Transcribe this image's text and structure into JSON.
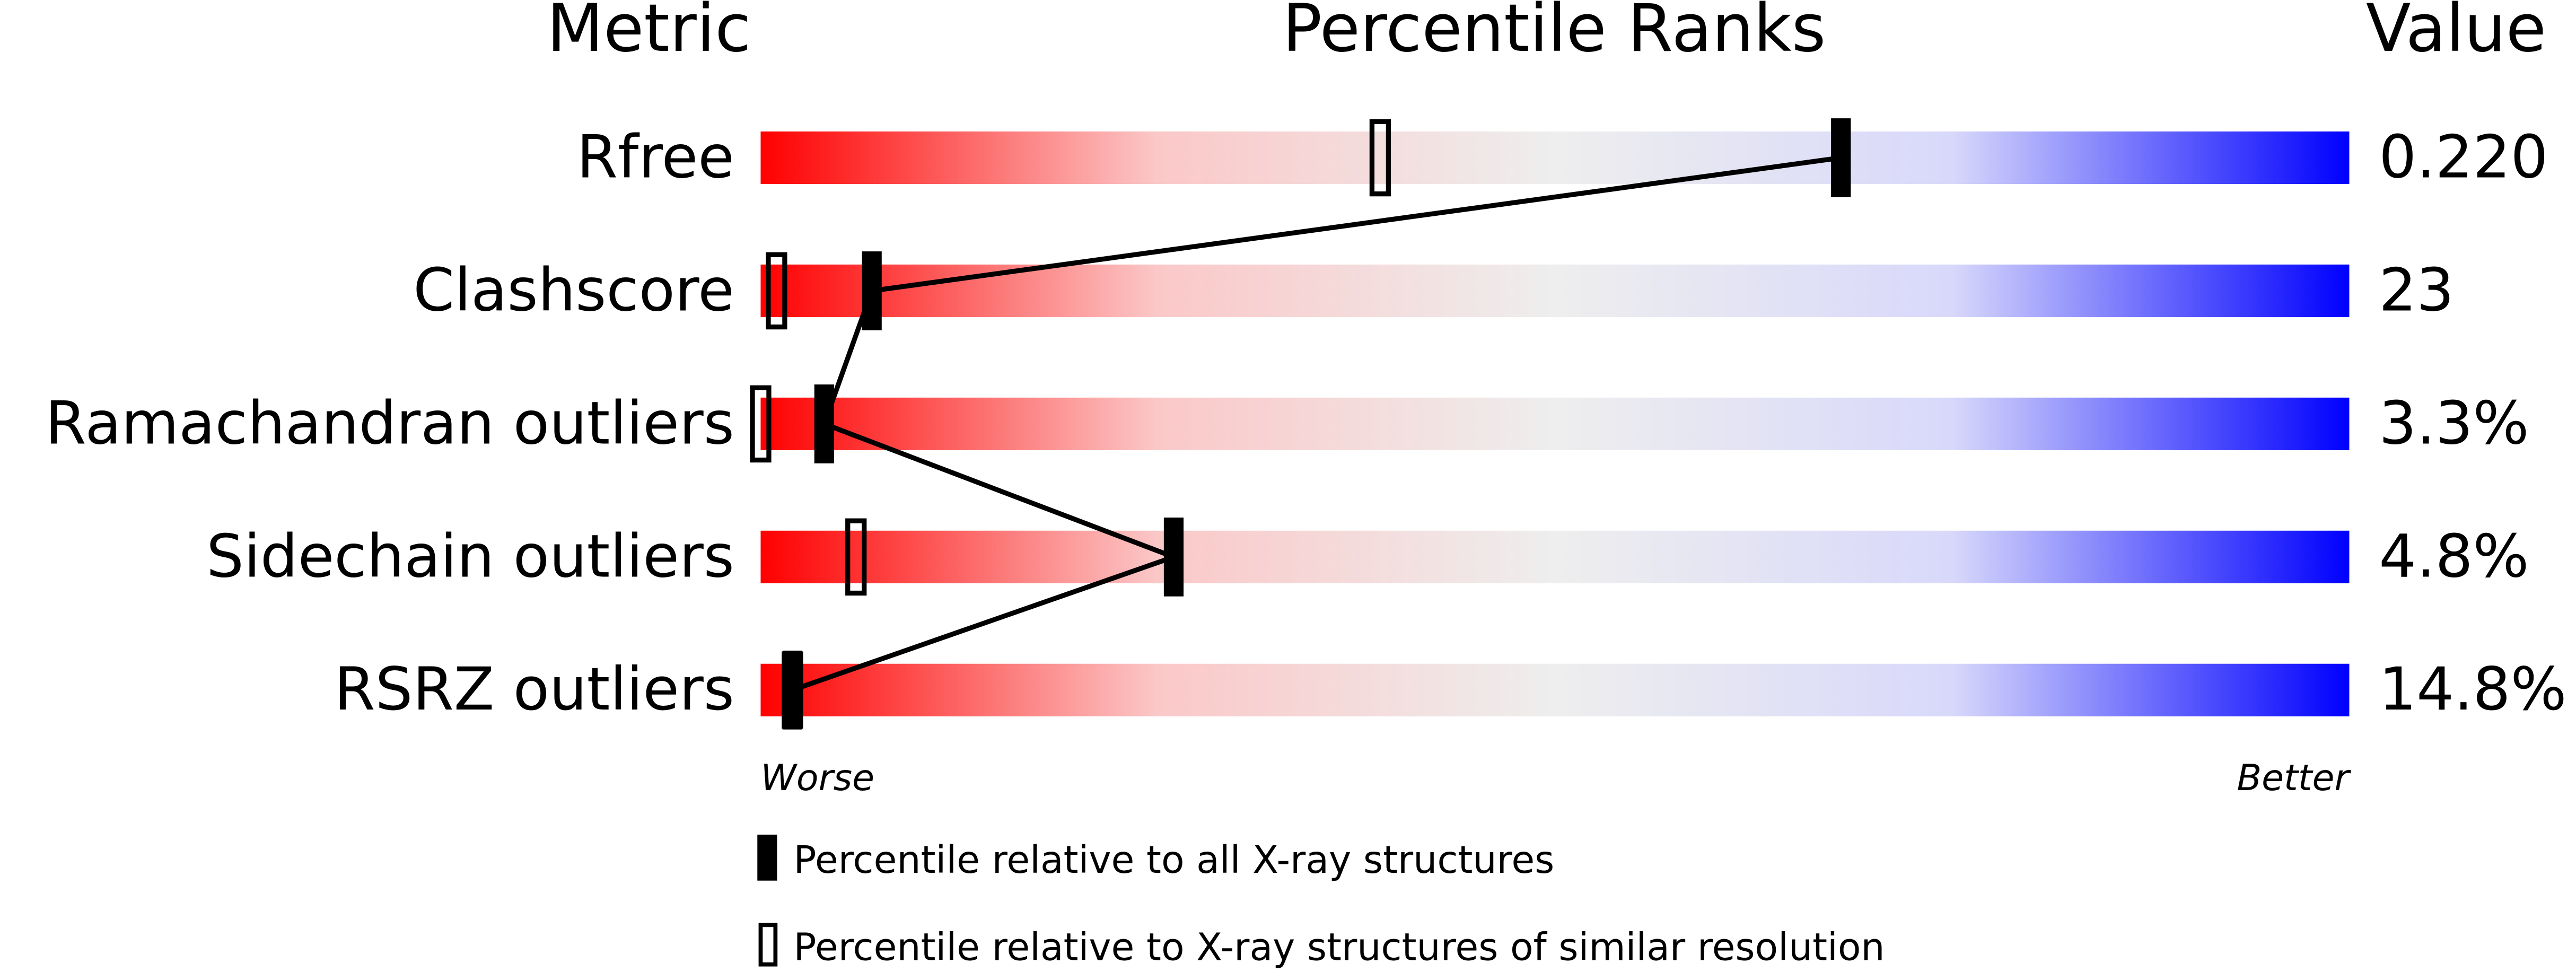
{
  "chart_data": {
    "type": "percentile-slider",
    "column_headers": {
      "metric": "Metric",
      "ranks": "Percentile Ranks",
      "value": "Value"
    },
    "categories": [
      "Rfree",
      "Clashscore",
      "Ramachandran outliers",
      "Sidechain outliers",
      "RSRZ outliers"
    ],
    "metric_values": [
      "0.220",
      "23",
      "3.3%",
      "4.8%",
      "14.8%"
    ],
    "series": [
      {
        "name": "Percentile relative to all X-ray structures",
        "marker": "filled",
        "color": "#000000",
        "values": [
          68,
          7,
          4,
          26,
          2
        ]
      },
      {
        "name": "Percentile relative to X-ray structures of similar resolution",
        "marker": "open",
        "color": "#000000",
        "values": [
          39,
          1,
          0,
          6,
          2
        ]
      }
    ],
    "xlim": [
      0,
      100
    ],
    "axis_labels": {
      "low": "Worse",
      "high": "Better"
    },
    "gradient": [
      "#ff0000",
      "#fbc8c8",
      "#eeeeee",
      "#d8d8fb",
      "#0000ff"
    ]
  }
}
